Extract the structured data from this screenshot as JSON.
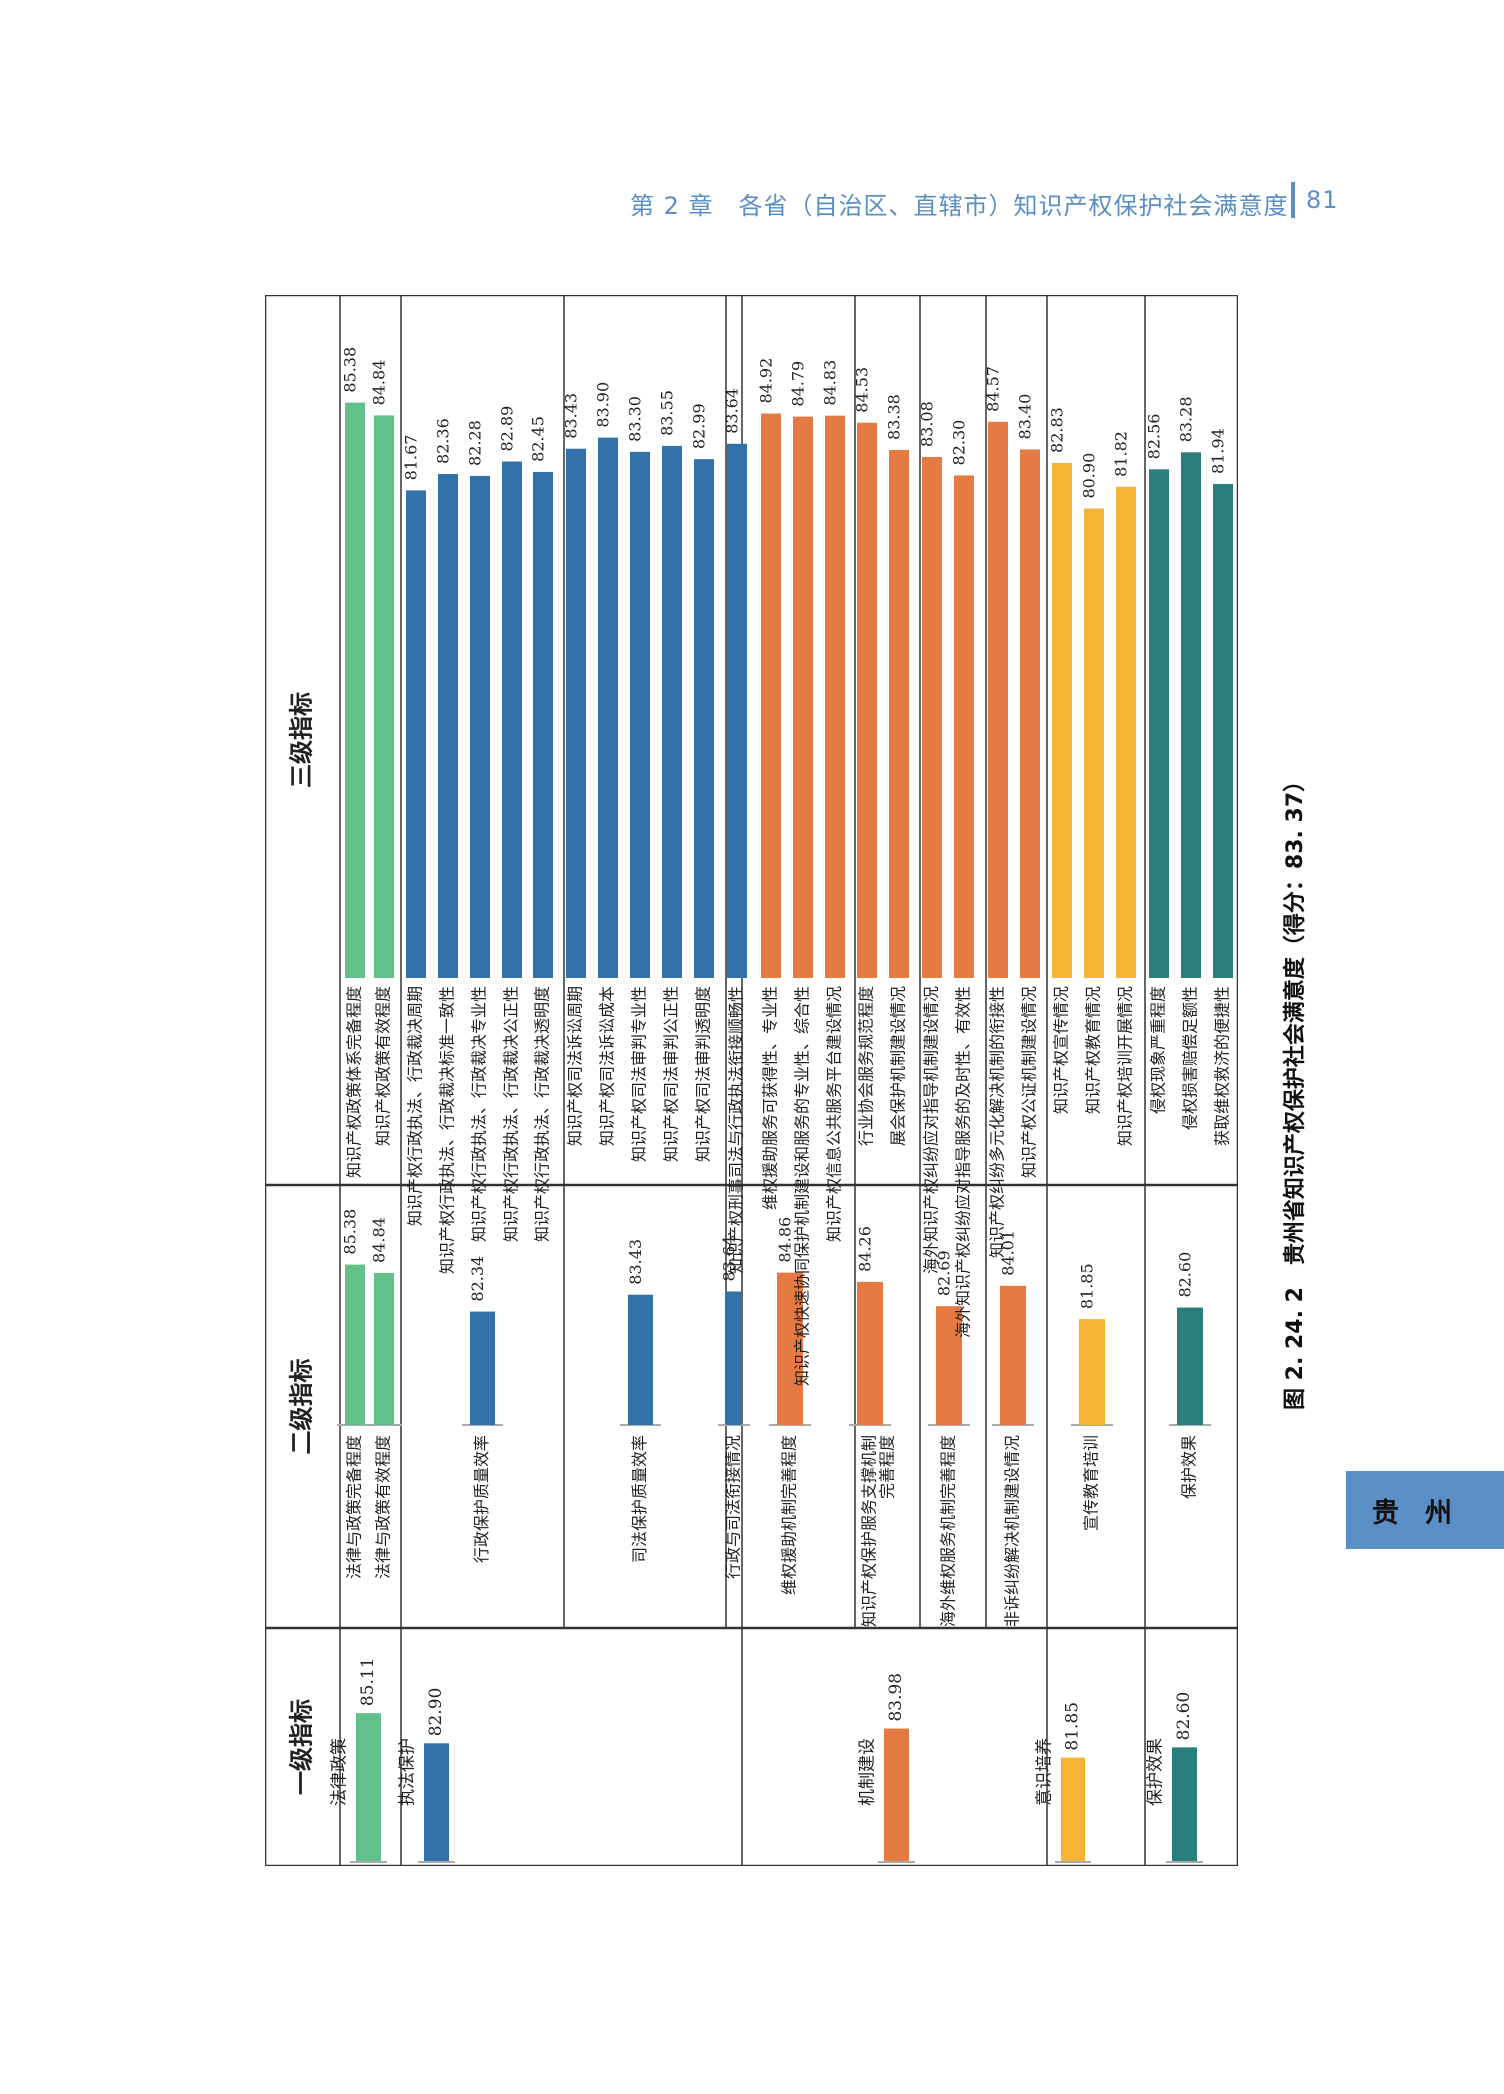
{
  "running_head": {
    "chapter": "第 2 章　各省（自治区、直辖市）知识产权保护社会满意度",
    "page_number": "81"
  },
  "side_tab": "贵州",
  "caption": "图 2. 24. 2　贵州省知识产权保护社会满意度（得分：83. 37）",
  "colors": {
    "legal": "#63c08b",
    "enforcement": "#3372a9",
    "mechanism": "#e57a43",
    "awareness": "#f4b334",
    "effect": "#2a7f7c",
    "border": "#333333",
    "baseline": "#aaaaaa",
    "header_text": "#5a8fc4"
  },
  "chart_data": {
    "type": "bar",
    "title": "贵州省知识产权保护社会满意度（得分：83. 37）",
    "overall_score": 83.37,
    "orientation": "rotated-90",
    "row_headers": [
      "一级指标",
      "二级指标",
      "三级指标"
    ],
    "level1": [
      {
        "label": "法律政策",
        "value": 85.11,
        "color_key": "legal"
      },
      {
        "label": "执法保护",
        "value": 82.9,
        "color_key": "enforcement"
      },
      {
        "label": "机制建设",
        "value": 83.98,
        "color_key": "mechanism"
      },
      {
        "label": "意识培养",
        "value": 81.85,
        "color_key": "awareness"
      },
      {
        "label": "保护效果",
        "value": 82.6,
        "color_key": "effect"
      }
    ],
    "level2": [
      {
        "label": "法律与政策完备程度",
        "value": 85.38,
        "color_key": "legal",
        "parent": 0
      },
      {
        "label": "法律与政策有效程度",
        "value": 84.84,
        "color_key": "legal",
        "parent": 0
      },
      {
        "label": "行政保护质量效率",
        "value": 82.34,
        "color_key": "enforcement",
        "parent": 1
      },
      {
        "label": "司法保护质量效率",
        "value": 83.43,
        "color_key": "enforcement",
        "parent": 1
      },
      {
        "label": "行政与司法衔接情况",
        "value": 83.64,
        "color_key": "enforcement",
        "parent": 1
      },
      {
        "label": "维权援助机制完善程度",
        "value": 84.86,
        "color_key": "mechanism",
        "parent": 2
      },
      {
        "label": "知识产权保护服务支撑机制完善程度",
        "value": 84.26,
        "color_key": "mechanism",
        "parent": 2
      },
      {
        "label": "海外维权服务机制完善程度",
        "value": 82.69,
        "color_key": "mechanism",
        "parent": 2
      },
      {
        "label": "非诉纠纷解决机制建设情况",
        "value": 84.01,
        "color_key": "mechanism",
        "parent": 2
      },
      {
        "label": "宣传教育培训",
        "value": 81.85,
        "color_key": "awareness",
        "parent": 3
      },
      {
        "label": "保护效果",
        "value": 82.6,
        "color_key": "effect",
        "parent": 4
      }
    ],
    "level3": [
      {
        "label": "知识产权政策体系完备程度",
        "value": 85.38,
        "parent": 0
      },
      {
        "label": "知识产权政策有效程度",
        "value": 84.84,
        "parent": 1
      },
      {
        "label": "知识产权行政执法、行政裁决周期",
        "value": 81.67,
        "parent": 2
      },
      {
        "label": "知识产权行政执法、行政裁决标准一致性",
        "value": 82.36,
        "parent": 2
      },
      {
        "label": "知识产权行政执法、行政裁决专业性",
        "value": 82.28,
        "parent": 2
      },
      {
        "label": "知识产权行政执法、行政裁决公正性",
        "value": 82.89,
        "parent": 2
      },
      {
        "label": "知识产权行政执法、行政裁决透明度",
        "value": 82.45,
        "parent": 2
      },
      {
        "label": "知识产权司法诉讼周期",
        "value": 83.43,
        "parent": 3
      },
      {
        "label": "知识产权司法诉讼成本",
        "value": 83.9,
        "parent": 3
      },
      {
        "label": "知识产权司法审判专业性",
        "value": 83.3,
        "parent": 3
      },
      {
        "label": "知识产权司法审判公正性",
        "value": 83.55,
        "parent": 3
      },
      {
        "label": "知识产权司法审判透明度",
        "value": 82.99,
        "parent": 3
      },
      {
        "label": "知识产权刑事司法与行政执法衔接顺畅性",
        "value": 83.64,
        "parent": 4
      },
      {
        "label": "维权援助服务可获得性、专业性",
        "value": 84.92,
        "parent": 5
      },
      {
        "label": "知识产权快速协同保护机制建设和服务的专业性、综合性",
        "value": 84.79,
        "parent": 5
      },
      {
        "label": "知识产权信息公共服务平台建设情况",
        "value": 84.83,
        "parent": 6
      },
      {
        "label": "行业协会服务规范程度",
        "value": 84.53,
        "parent": 6
      },
      {
        "label": "展会保护机制建设情况",
        "value": 83.38,
        "parent": 6
      },
      {
        "label": "海外知识产权纠纷应对指导机制建设情况",
        "value": 83.08,
        "parent": 7
      },
      {
        "label": "海外知识产权纠纷应对指导服务的及时性、有效性",
        "value": 82.3,
        "parent": 7
      },
      {
        "label": "知识产权纠纷多元化解决机制的衔接性",
        "value": 84.57,
        "parent": 8
      },
      {
        "label": "知识产权公证机制建设情况",
        "value": 83.4,
        "parent": 8
      },
      {
        "label": "知识产权宣传情况",
        "value": 82.83,
        "parent": 9
      },
      {
        "label": "知识产权教育情况",
        "value": 80.9,
        "parent": 9
      },
      {
        "label": "知识产权培训开展情况",
        "value": 81.82,
        "parent": 9
      },
      {
        "label": "侵权现象严重程度",
        "value": 82.56,
        "parent": 10
      },
      {
        "label": "侵权损害赔偿足额性",
        "value": 83.28,
        "parent": 10
      },
      {
        "label": "获取维权救济的便捷性",
        "value": 81.94,
        "parent": 10
      }
    ],
    "value_range": [
      70,
      86
    ]
  }
}
